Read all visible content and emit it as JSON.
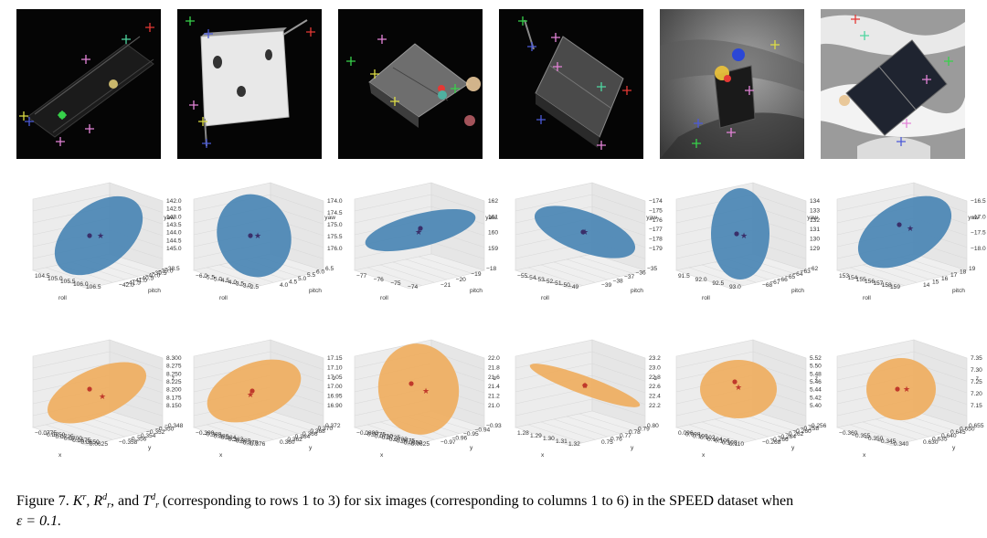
{
  "figure": {
    "caption": {
      "label": "Figure 7.",
      "k_letter": "K",
      "r_letter": "R",
      "t_letter": "T",
      "sup_r": "r",
      "sup_d": "d",
      "sub_r": "r",
      "sep1": ",",
      "sep2": ", and",
      "text_a": "(corresponding to rows 1 to 3) for six images (corresponding to columns 1 to 6) in the SPEED dataset when",
      "epsilon": "ε = 0.1."
    },
    "colors": {
      "ellipsoid_blue": "#4a86b4",
      "ellipsoid_orange": "#efae5f",
      "marker_dark": "#3a2f6a",
      "marker_red": "#c0392b",
      "grid": "#d8d8d8"
    },
    "rotation_plots": [
      {
        "x_label": "roll",
        "y_label": "pitch",
        "z_label": "yaw",
        "x_ticks": [
          "104.5",
          "105.0",
          "105.5",
          "106.0",
          "106.5"
        ],
        "y_ticks": [
          "−38.5",
          "−39.0",
          "−39.5",
          "−40.0",
          "−40.5",
          "−41.0",
          "−41.5",
          "−42.0"
        ],
        "z_ticks": [
          "142.0",
          "142.5",
          "143.0",
          "143.5",
          "144.0",
          "144.5",
          "145.0"
        ]
      },
      {
        "x_label": "roll",
        "y_label": "pitch",
        "z_label": "yaw",
        "x_ticks": [
          "−6.0",
          "−5.5",
          "−5.0",
          "−4.5",
          "−4.0",
          "−3.5",
          "−3.0",
          "−2.5"
        ],
        "y_ticks": [
          "6.5",
          "6.0",
          "5.5",
          "5.0",
          "4.5",
          "4.0"
        ],
        "z_ticks": [
          "174.0",
          "174.5",
          "175.0",
          "175.5",
          "176.0"
        ]
      },
      {
        "x_label": "roll",
        "y_label": "pitch",
        "z_label": "yaw",
        "x_ticks": [
          "−77",
          "−76",
          "−75",
          "−74"
        ],
        "y_ticks": [
          "−18",
          "−19",
          "−20",
          "−21"
        ],
        "z_ticks": [
          "162",
          "161",
          "160",
          "159"
        ]
      },
      {
        "x_label": "roll",
        "y_label": "pitch",
        "z_label": "yaw",
        "x_ticks": [
          "−55",
          "−54",
          "−53",
          "−52",
          "−51",
          "−50",
          "−49"
        ],
        "y_ticks": [
          "−35",
          "−36",
          "−37",
          "−38",
          "−39"
        ],
        "z_ticks": [
          "−174",
          "−175",
          "−176",
          "−177",
          "−178",
          "−179"
        ]
      },
      {
        "x_label": "roll",
        "y_label": "pitch",
        "z_label": "yaw",
        "x_ticks": [
          "91.5",
          "92.0",
          "92.5",
          "93.0"
        ],
        "y_ticks": [
          "−62",
          "−63",
          "−64",
          "−65",
          "−66",
          "−67",
          "−68"
        ],
        "z_ticks": [
          "134",
          "133",
          "132",
          "131",
          "130",
          "129"
        ]
      },
      {
        "x_label": "roll",
        "y_label": "pitch",
        "z_label": "yaw",
        "x_ticks": [
          "153",
          "154",
          "155",
          "156",
          "157",
          "158",
          "159"
        ],
        "y_ticks": [
          "19",
          "18",
          "17",
          "16",
          "15",
          "14"
        ],
        "z_ticks": [
          "−16.5",
          "−17.0",
          "−17.5",
          "−18.0"
        ]
      }
    ],
    "translation_plots": [
      {
        "x_label": "x",
        "y_label": "y",
        "z_label": "z",
        "x_ticks": [
          "−0.0775",
          "−0.0750",
          "−0.0725",
          "−0.0700",
          "−0.0675",
          "−0.0650",
          "−0.0625"
        ],
        "y_ticks": [
          "−0.348",
          "−0.350",
          "−0.352",
          "−0.354",
          "−0.356",
          "−0.358"
        ],
        "z_ticks": [
          "8.300",
          "8.275",
          "8.250",
          "8.225",
          "8.200",
          "8.175",
          "8.150"
        ]
      },
      {
        "x_label": "x",
        "y_label": "y",
        "z_label": "z",
        "x_ticks": [
          "−0.390",
          "−0.388",
          "−0.386",
          "−0.384",
          "−0.382",
          "−0.380",
          "−0.378",
          "−0.376"
        ],
        "y_ticks": [
          "0.372",
          "0.370",
          "0.368",
          "0.366",
          "0.364",
          "0.362",
          "0.360"
        ],
        "z_ticks": [
          "17.15",
          "17.10",
          "17.05",
          "17.00",
          "16.95",
          "16.90"
        ]
      },
      {
        "x_label": "x",
        "y_label": "y",
        "z_label": "z",
        "x_ticks": [
          "−0.0800",
          "−0.0775",
          "−0.0750",
          "−0.0725",
          "−0.0700",
          "−0.0675",
          "−0.0650",
          "−0.0625"
        ],
        "y_ticks": [
          "−0.93",
          "−0.94",
          "−0.95",
          "−0.96",
          "−0.97"
        ],
        "z_ticks": [
          "22.0",
          "21.8",
          "21.6",
          "21.4",
          "21.2",
          "21.0"
        ]
      },
      {
        "x_label": "x",
        "y_label": "y",
        "z_label": "z",
        "x_ticks": [
          "1.28",
          "1.29",
          "1.30",
          "1.31",
          "1.32"
        ],
        "y_ticks": [
          "0.80",
          "0.79",
          "0.78",
          "0.77",
          "0.76",
          "0.75"
        ],
        "z_ticks": [
          "23.2",
          "23.0",
          "22.8",
          "22.6",
          "22.4",
          "22.2"
        ]
      },
      {
        "x_label": "x",
        "y_label": "y",
        "z_label": "z",
        "x_ticks": [
          "0.096",
          "0.098",
          "0.100",
          "0.102",
          "0.104",
          "0.106",
          "0.108",
          "0.110"
        ],
        "y_ticks": [
          "−0.256",
          "−0.258",
          "−0.260",
          "−0.262",
          "−0.264",
          "−0.266",
          "−0.268"
        ],
        "z_ticks": [
          "5.52",
          "5.50",
          "5.48",
          "5.46",
          "5.44",
          "5.42",
          "5.40"
        ]
      },
      {
        "x_label": "x",
        "y_label": "y",
        "z_label": "z",
        "x_ticks": [
          "−0.360",
          "−0.355",
          "−0.350",
          "−0.345",
          "−0.340"
        ],
        "y_ticks": [
          "0.655",
          "0.650",
          "0.645",
          "0.640",
          "0.635",
          "0.630"
        ],
        "z_ticks": [
          "7.35",
          "7.30",
          "7.25",
          "7.20",
          "7.15"
        ]
      }
    ]
  }
}
